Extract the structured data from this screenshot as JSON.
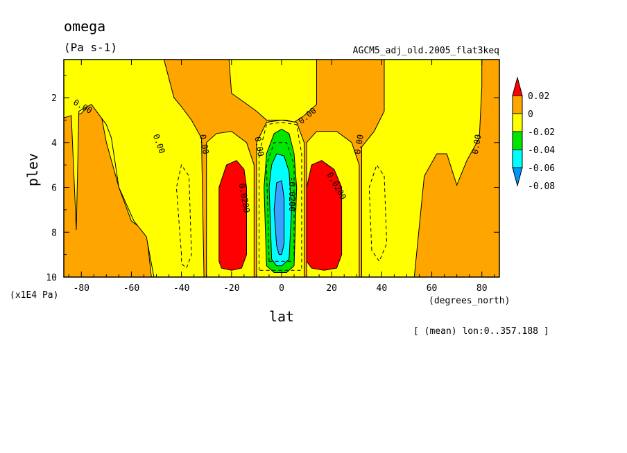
{
  "header": {
    "title": "omega",
    "units": "(Pa s-1)",
    "dataset": "AGCM5_adj_old.2005_flat3keq"
  },
  "chart_data": {
    "type": "heatmap",
    "xlabel": "lat",
    "xunits": "(degrees_north)",
    "ylabel": "plev",
    "yunits": "(x1E4 Pa)",
    "xlim": [
      -87,
      87
    ],
    "ylim": [
      10,
      0.3
    ],
    "xticks": [
      -80,
      -60,
      -40,
      -20,
      0,
      20,
      40,
      60,
      80
    ],
    "xtick_labels": [
      "-80",
      "-60",
      "-40",
      "-20",
      "0",
      "20",
      "40",
      "60",
      "80"
    ],
    "yticks": [
      2,
      4,
      6,
      8,
      10
    ],
    "ytick_labels": [
      "2",
      "4",
      "6",
      "8",
      "10"
    ],
    "footnote": "[ (mean) lon:0..357.188 ]",
    "colorbar": {
      "labels": [
        "0.02",
        "0",
        "-0.02",
        "-0.04",
        "-0.06",
        "-0.08"
      ],
      "colors": [
        "#ff0000",
        "#ffa500",
        "#ffff00",
        "#00e600",
        "#00ffff",
        "#0096ff"
      ]
    },
    "background_color": "#ffa500",
    "regions": [
      {
        "level": "-0.02 to 0",
        "color": "#ffff00",
        "name": "yellow-region-sh-polar",
        "points": [
          [
            -87,
            0.3
          ],
          [
            -54,
            0.3
          ],
          [
            -51,
            10
          ],
          [
            -52,
            10
          ],
          [
            -54,
            8
          ],
          [
            -60,
            7.5
          ],
          [
            -65,
            6
          ],
          [
            -70,
            4
          ],
          [
            -72,
            2.8
          ],
          [
            -76,
            2.2
          ],
          [
            -80,
            2.7
          ],
          [
            -84,
            2.8
          ],
          [
            -85,
            0.3
          ]
        ]
      },
      {
        "level": "-0.02 to 0",
        "color": "#ffff00",
        "name": "yellow-region-sh-mid",
        "points": [
          [
            -51,
            10
          ],
          [
            -54,
            8.2
          ],
          [
            -59,
            7.5
          ],
          [
            -65,
            6
          ],
          [
            -68,
            3.8
          ],
          [
            -70,
            3.2
          ],
          [
            -76,
            2.3
          ],
          [
            -81,
            2.6
          ],
          [
            -82,
            7.9
          ],
          [
            -84,
            2.8
          ],
          [
            -87,
            2.9
          ],
          [
            -87,
            0.3
          ],
          [
            -47,
            0.3
          ],
          [
            -43,
            2
          ],
          [
            -40,
            2.4
          ],
          [
            -36,
            3
          ],
          [
            -32,
            3.8
          ],
          [
            -31,
            10
          ]
        ]
      },
      {
        "level": "-0.02 to 0",
        "color": "#ffff00",
        "name": "yellow-region-tropics",
        "points": [
          [
            -21,
            0.3
          ],
          [
            14,
            0.3
          ],
          [
            14,
            2.3
          ],
          [
            9,
            2.8
          ],
          [
            5,
            3.1
          ],
          [
            2,
            3
          ],
          [
            -2,
            3
          ],
          [
            -6,
            3
          ],
          [
            -10,
            2.6
          ],
          [
            -15,
            2.2
          ],
          [
            -20,
            1.8
          ]
        ]
      },
      {
        "level": "-0.02 to 0",
        "color": "#ffff00",
        "name": "yellow-region-nh",
        "points": [
          [
            32,
            10
          ],
          [
            32,
            4.2
          ],
          [
            37,
            3.5
          ],
          [
            41,
            2.6
          ],
          [
            41,
            0.3
          ],
          [
            80,
            0.3
          ],
          [
            80,
            1.5
          ],
          [
            79,
            3.8
          ],
          [
            74,
            4.8
          ],
          [
            70,
            5.9
          ],
          [
            66,
            4.5
          ],
          [
            62,
            4.5
          ],
          [
            57,
            5.5
          ],
          [
            53,
            10
          ]
        ]
      },
      {
        "level": "-0.02 to 0",
        "color": "#ffff00",
        "name": "yellow-region-tropical-deep",
        "points": [
          [
            -30,
            10
          ],
          [
            -30,
            4
          ],
          [
            -26,
            3.6
          ],
          [
            -20,
            3.5
          ],
          [
            -14,
            4
          ],
          [
            -11,
            5
          ],
          [
            -11,
            10
          ]
        ]
      },
      {
        "level": "-0.02 to 0",
        "color": "#ffff00",
        "name": "yellow-region-tropical-deep-nh",
        "points": [
          [
            10,
            10
          ],
          [
            10,
            4
          ],
          [
            14,
            3.5
          ],
          [
            22,
            3.5
          ],
          [
            28,
            4
          ],
          [
            31,
            5
          ],
          [
            31,
            10
          ]
        ]
      },
      {
        "level": "-0.02 to 0",
        "color": "#ffff00",
        "name": "yellow-region-equator",
        "points": [
          [
            -10,
            10
          ],
          [
            -10,
            4
          ],
          [
            -6,
            3.1
          ],
          [
            0,
            3
          ],
          [
            6,
            3.1
          ],
          [
            9,
            4
          ],
          [
            9,
            10
          ]
        ]
      },
      {
        "level": "> 0.02",
        "color": "#ff0000",
        "name": "red-region-sh",
        "points": [
          [
            -25,
            9.3
          ],
          [
            -25,
            6
          ],
          [
            -22,
            5
          ],
          [
            -18,
            4.8
          ],
          [
            -15,
            5.2
          ],
          [
            -14,
            6
          ],
          [
            -14,
            9
          ],
          [
            -16,
            9.6
          ],
          [
            -20,
            9.7
          ],
          [
            -24,
            9.6
          ]
        ]
      },
      {
        "level": "> 0.02",
        "color": "#ff0000",
        "name": "red-region-nh",
        "points": [
          [
            10,
            9.3
          ],
          [
            10,
            6
          ],
          [
            12,
            5
          ],
          [
            16,
            4.8
          ],
          [
            21,
            5.2
          ],
          [
            24,
            6
          ],
          [
            24,
            9
          ],
          [
            22,
            9.6
          ],
          [
            17,
            9.7
          ],
          [
            12,
            9.6
          ]
        ]
      },
      {
        "level": "-0.04 to -0.02",
        "color": "#00e600",
        "name": "green-region",
        "points": [
          [
            -6,
            9.5
          ],
          [
            -7,
            6
          ],
          [
            -6,
            4.5
          ],
          [
            -3,
            3.6
          ],
          [
            0,
            3.4
          ],
          [
            3,
            3.6
          ],
          [
            5,
            4.5
          ],
          [
            6,
            6
          ],
          [
            5,
            9.5
          ],
          [
            2,
            9.8
          ],
          [
            -3,
            9.8
          ]
        ]
      },
      {
        "level": "-0.06 to -0.04",
        "color": "#00ffff",
        "name": "cyan-region",
        "points": [
          [
            -4,
            9.2
          ],
          [
            -5,
            6
          ],
          [
            -4,
            5
          ],
          [
            -2,
            4.5
          ],
          [
            1,
            4.6
          ],
          [
            3,
            5.3
          ],
          [
            4,
            7
          ],
          [
            3,
            9.2
          ],
          [
            0,
            9.5
          ],
          [
            -2,
            9.5
          ]
        ]
      },
      {
        "level": "-0.08 to -0.06",
        "color": "#3aa0ff",
        "name": "blue-region",
        "points": [
          [
            -2,
            8.6
          ],
          [
            -3,
            7
          ],
          [
            -2,
            5.8
          ],
          [
            0,
            5.7
          ],
          [
            1,
            6.5
          ],
          [
            1,
            8.5
          ],
          [
            0,
            9
          ],
          [
            -1,
            9
          ]
        ]
      }
    ],
    "contour_labels": [
      {
        "text": "0.00",
        "lat": -80,
        "plev": 2.5,
        "rotate": 30
      },
      {
        "text": "0.00",
        "lat": -50,
        "plev": 4.1,
        "rotate": 70
      },
      {
        "text": "0.00",
        "lat": -32,
        "plev": 4.1,
        "rotate": 80
      },
      {
        "text": "0.00",
        "lat": -10,
        "plev": 4.2,
        "rotate": 80
      },
      {
        "text": "0.00",
        "lat": 11,
        "plev": 2.9,
        "rotate": -40
      },
      {
        "text": "0.00",
        "lat": 32,
        "plev": 4.1,
        "rotate": -80
      },
      {
        "text": "0.00",
        "lat": 79,
        "plev": 4.1,
        "rotate": -80
      },
      {
        "text": "0.0200",
        "lat": -16,
        "plev": 6.5,
        "rotate": 80
      },
      {
        "text": "-0.0200",
        "lat": 3,
        "plev": 6.3,
        "rotate": 90
      },
      {
        "text": "0.0200",
        "lat": 21,
        "plev": 6.0,
        "rotate": 60
      }
    ]
  }
}
